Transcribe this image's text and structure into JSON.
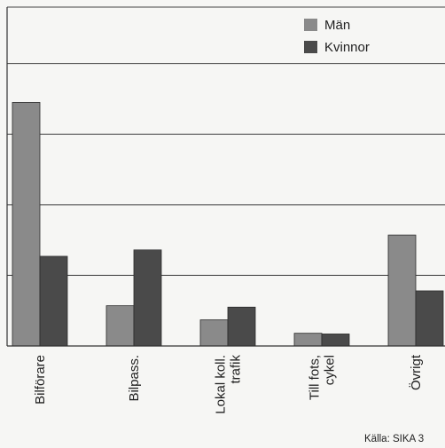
{
  "chart_data": {
    "type": "bar",
    "categories": [
      [
        "Bilförare"
      ],
      [
        "Bilpass."
      ],
      [
        "Lokal koll.",
        "trafik"
      ],
      [
        "Till fots,",
        "cykel"
      ],
      [
        "Övrigt"
      ]
    ],
    "series": [
      {
        "name": "Män",
        "color": "#8a8a8a",
        "values": [
          34.5,
          5.7,
          3.7,
          1.8,
          15.7
        ]
      },
      {
        "name": "Kvinnor",
        "color": "#4a4a4a",
        "values": [
          12.7,
          13.6,
          5.5,
          1.7,
          7.8
        ]
      }
    ],
    "ylim": [
      0,
      48
    ],
    "yticks": [
      0,
      10,
      20,
      30,
      40
    ],
    "grid": true,
    "legend_position": "top-right",
    "source": "Källa: SIKA 3"
  }
}
